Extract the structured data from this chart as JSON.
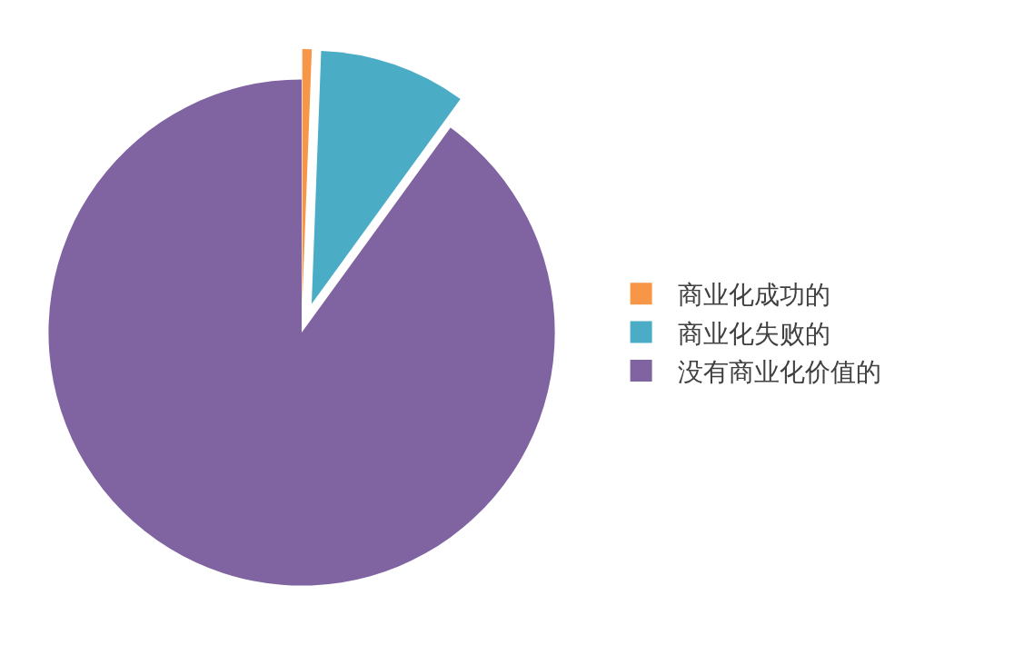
{
  "chart_data": {
    "type": "pie",
    "categories": [
      "商业化成功的",
      "商业化失败的",
      "没有商业化价值的"
    ],
    "values": [
      0.6,
      9.4,
      90
    ],
    "colors": [
      "#f79646",
      "#4bacc6",
      "#8064a2"
    ],
    "legend": "right"
  }
}
